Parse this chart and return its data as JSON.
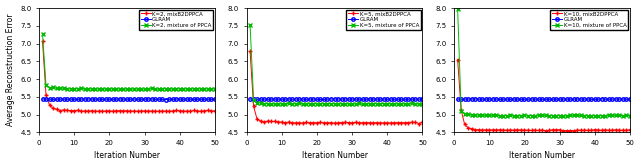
{
  "subplots": [
    {
      "ylim": [
        4.5,
        8.0
      ],
      "yticks": [
        4.5,
        5.0,
        5.5,
        6.0,
        6.5,
        7.0,
        7.5,
        8.0
      ],
      "xlim": [
        0,
        50
      ],
      "xticks": [
        0,
        10,
        20,
        30,
        40,
        50
      ],
      "red_x": [
        1,
        2,
        3,
        4,
        5,
        6,
        7,
        8,
        9,
        10,
        15,
        20,
        25,
        30,
        35,
        40,
        45,
        50
      ],
      "red_y": [
        7.05,
        5.55,
        5.27,
        5.18,
        5.14,
        5.13,
        5.12,
        5.12,
        5.11,
        5.11,
        5.1,
        5.1,
        5.1,
        5.1,
        5.1,
        5.1,
        5.1,
        5.1
      ],
      "green_x": [
        1,
        2,
        3,
        4,
        5,
        6,
        7,
        8,
        9,
        10,
        15,
        20,
        25,
        30,
        35,
        40,
        45,
        50
      ],
      "green_y": [
        7.28,
        5.82,
        5.77,
        5.76,
        5.75,
        5.74,
        5.74,
        5.73,
        5.73,
        5.73,
        5.72,
        5.72,
        5.72,
        5.72,
        5.72,
        5.72,
        5.72,
        5.72
      ],
      "blue_val": 5.43,
      "legend_k": "K=2"
    },
    {
      "ylim": [
        4.5,
        8.0
      ],
      "yticks": [
        4.5,
        5.0,
        5.5,
        6.0,
        6.5,
        7.0,
        7.5,
        8.0
      ],
      "xlim": [
        0,
        50
      ],
      "xticks": [
        0,
        10,
        20,
        30,
        40,
        50
      ],
      "red_x": [
        1,
        2,
        3,
        4,
        5,
        6,
        7,
        8,
        9,
        10,
        15,
        20,
        25,
        30,
        35,
        40,
        45,
        50
      ],
      "red_y": [
        6.78,
        5.22,
        4.88,
        4.83,
        4.81,
        4.8,
        4.79,
        4.79,
        4.78,
        4.78,
        4.77,
        4.77,
        4.77,
        4.77,
        4.77,
        4.77,
        4.77,
        4.77
      ],
      "green_x": [
        1,
        2,
        3,
        4,
        5,
        6,
        7,
        8,
        9,
        10,
        15,
        20,
        25,
        30,
        35,
        40,
        45,
        50
      ],
      "green_y": [
        7.52,
        5.42,
        5.33,
        5.32,
        5.31,
        5.31,
        5.3,
        5.3,
        5.3,
        5.3,
        5.3,
        5.3,
        5.3,
        5.3,
        5.3,
        5.3,
        5.3,
        5.3
      ],
      "blue_val": 5.43,
      "legend_k": "K=5"
    },
    {
      "ylim": [
        4.5,
        8.0
      ],
      "yticks": [
        4.5,
        5.0,
        5.5,
        6.0,
        6.5,
        7.0,
        7.5,
        8.0
      ],
      "xlim": [
        0,
        50
      ],
      "xticks": [
        0,
        10,
        20,
        30,
        40,
        50
      ],
      "red_x": [
        1,
        2,
        3,
        4,
        5,
        6,
        7,
        8,
        9,
        10,
        15,
        20,
        25,
        30,
        35,
        40,
        45,
        50
      ],
      "red_y": [
        6.55,
        5.12,
        4.72,
        4.63,
        4.6,
        4.59,
        4.58,
        4.57,
        4.57,
        4.57,
        4.56,
        4.56,
        4.56,
        4.56,
        4.56,
        4.56,
        4.56,
        4.56
      ],
      "green_x": [
        1,
        2,
        3,
        4,
        5,
        6,
        7,
        8,
        9,
        10,
        15,
        20,
        25,
        30,
        35,
        40,
        45,
        50
      ],
      "green_y": [
        7.98,
        5.12,
        5.03,
        5.01,
        5.0,
        4.99,
        4.99,
        4.98,
        4.98,
        4.98,
        4.97,
        4.97,
        4.97,
        4.97,
        4.97,
        4.97,
        4.97,
        4.97
      ],
      "blue_val": 5.43,
      "legend_k": "K=10"
    }
  ],
  "xlabel": "Iteration Number",
  "ylabel": "Average Reconstruction Error",
  "red_color": "#FF0000",
  "blue_color": "#0000FF",
  "green_color": "#00BB00",
  "legend_labels": [
    "mixB2DPPCA",
    "GLRAM",
    "mixture of PPCA"
  ],
  "marker_red": "+",
  "marker_blue": "o",
  "marker_green": "x",
  "marker_size": 2.5,
  "linewidth": 0.7
}
